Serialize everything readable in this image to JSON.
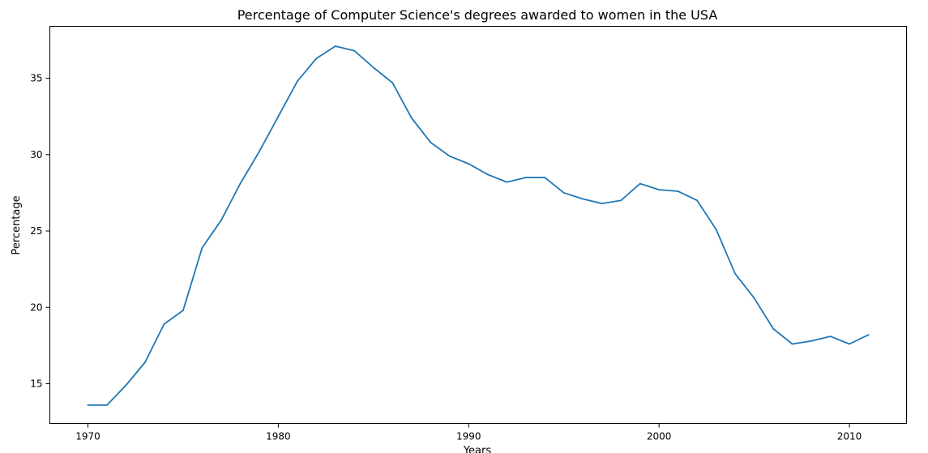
{
  "chart_data": {
    "type": "line",
    "title": "Percentage of Computer Science's degrees awarded to women in the USA",
    "xlabel": "Years",
    "ylabel": "Percentage",
    "xlim": [
      1968,
      2013
    ],
    "ylim": [
      12.4,
      38.4
    ],
    "xticks": [
      1970,
      1980,
      1990,
      2000,
      2010
    ],
    "yticks": [
      15,
      20,
      25,
      30,
      35
    ],
    "grid": false,
    "legend": "none",
    "line_color": "#1f77b4",
    "x": [
      1970,
      1971,
      1972,
      1973,
      1974,
      1975,
      1976,
      1977,
      1978,
      1979,
      1980,
      1981,
      1982,
      1983,
      1984,
      1985,
      1986,
      1987,
      1988,
      1989,
      1990,
      1991,
      1992,
      1993,
      1994,
      1995,
      1996,
      1997,
      1998,
      1999,
      2000,
      2001,
      2002,
      2003,
      2004,
      2005,
      2006,
      2007,
      2008,
      2009,
      2010,
      2011
    ],
    "values": [
      13.6,
      13.6,
      14.9,
      16.4,
      18.9,
      19.8,
      23.9,
      25.7,
      28.1,
      30.2,
      32.5,
      34.8,
      36.3,
      37.1,
      36.8,
      35.7,
      34.7,
      32.4,
      30.8,
      29.9,
      29.4,
      28.7,
      28.2,
      28.5,
      28.5,
      27.5,
      27.1,
      26.8,
      27.0,
      28.1,
      27.7,
      27.6,
      27.0,
      25.1,
      22.2,
      20.6,
      18.6,
      17.6,
      17.8,
      18.1,
      17.6,
      18.2
    ]
  }
}
